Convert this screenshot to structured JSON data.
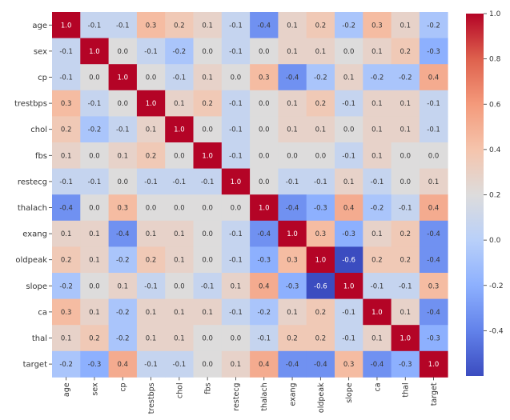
{
  "chart_data": {
    "type": "heatmap",
    "title": "",
    "xlabel": "",
    "ylabel": "",
    "labels": [
      "age",
      "sex",
      "cp",
      "trestbps",
      "chol",
      "fbs",
      "restecg",
      "thalach",
      "exang",
      "oldpeak",
      "slope",
      "ca",
      "thal",
      "target"
    ],
    "values": [
      [
        1.0,
        -0.1,
        -0.1,
        0.3,
        0.2,
        0.1,
        -0.1,
        -0.4,
        0.1,
        0.2,
        -0.2,
        0.3,
        0.1,
        -0.2
      ],
      [
        -0.1,
        1.0,
        -0.0,
        -0.1,
        -0.2,
        0.0,
        -0.1,
        -0.0,
        0.1,
        0.1,
        -0.0,
        0.1,
        0.2,
        -0.3
      ],
      [
        -0.1,
        -0.0,
        1.0,
        0.0,
        -0.1,
        0.1,
        0.0,
        0.3,
        -0.4,
        -0.2,
        0.1,
        -0.2,
        -0.2,
        0.4
      ],
      [
        0.3,
        -0.1,
        0.0,
        1.0,
        0.1,
        0.2,
        -0.1,
        -0.0,
        0.1,
        0.2,
        -0.1,
        0.1,
        0.1,
        -0.1
      ],
      [
        0.2,
        -0.2,
        -0.1,
        0.1,
        1.0,
        0.0,
        -0.1,
        -0.0,
        0.1,
        0.1,
        -0.0,
        0.1,
        0.1,
        -0.1
      ],
      [
        0.1,
        0.0,
        0.1,
        0.2,
        0.0,
        1.0,
        -0.1,
        -0.0,
        0.0,
        0.0,
        -0.1,
        0.1,
        -0.0,
        -0.0
      ],
      [
        -0.1,
        -0.1,
        0.0,
        -0.1,
        -0.1,
        -0.1,
        1.0,
        0.0,
        -0.1,
        -0.1,
        0.1,
        -0.1,
        -0.0,
        0.1
      ],
      [
        -0.4,
        -0.0,
        0.3,
        -0.0,
        -0.0,
        -0.0,
        0.0,
        1.0,
        -0.4,
        -0.3,
        0.4,
        -0.2,
        -0.1,
        0.4
      ],
      [
        0.1,
        0.1,
        -0.4,
        0.1,
        0.1,
        0.0,
        -0.1,
        -0.4,
        1.0,
        0.3,
        -0.3,
        0.1,
        0.2,
        -0.4
      ],
      [
        0.2,
        0.1,
        -0.2,
        0.2,
        0.1,
        0.0,
        -0.1,
        -0.3,
        0.3,
        1.0,
        -0.6,
        0.2,
        0.2,
        -0.4
      ],
      [
        -0.2,
        -0.0,
        0.1,
        -0.1,
        -0.0,
        -0.1,
        0.1,
        0.4,
        -0.3,
        -0.6,
        1.0,
        -0.1,
        -0.1,
        0.3
      ],
      [
        0.3,
        0.1,
        -0.2,
        0.1,
        0.1,
        0.1,
        -0.1,
        -0.2,
        0.1,
        0.2,
        -0.1,
        1.0,
        0.1,
        -0.4
      ],
      [
        0.1,
        0.2,
        -0.2,
        0.1,
        0.1,
        -0.0,
        -0.0,
        -0.1,
        0.2,
        0.2,
        -0.1,
        0.1,
        1.0,
        -0.3
      ],
      [
        -0.2,
        -0.3,
        0.4,
        -0.1,
        -0.1,
        -0.0,
        0.1,
        0.4,
        -0.4,
        -0.4,
        0.3,
        -0.4,
        -0.3,
        1.0
      ]
    ],
    "colormap": "coolwarm",
    "vmin": -0.6,
    "vmax": 1.0,
    "colorbar_ticks": [
      "1.0",
      "0.8",
      "0.6",
      "0.4",
      "0.2",
      "0.0",
      "-0.2",
      "-0.4"
    ],
    "colors": {
      "low": "#3b4cc0",
      "mid": "#dddddd",
      "high": "#b40426"
    }
  }
}
